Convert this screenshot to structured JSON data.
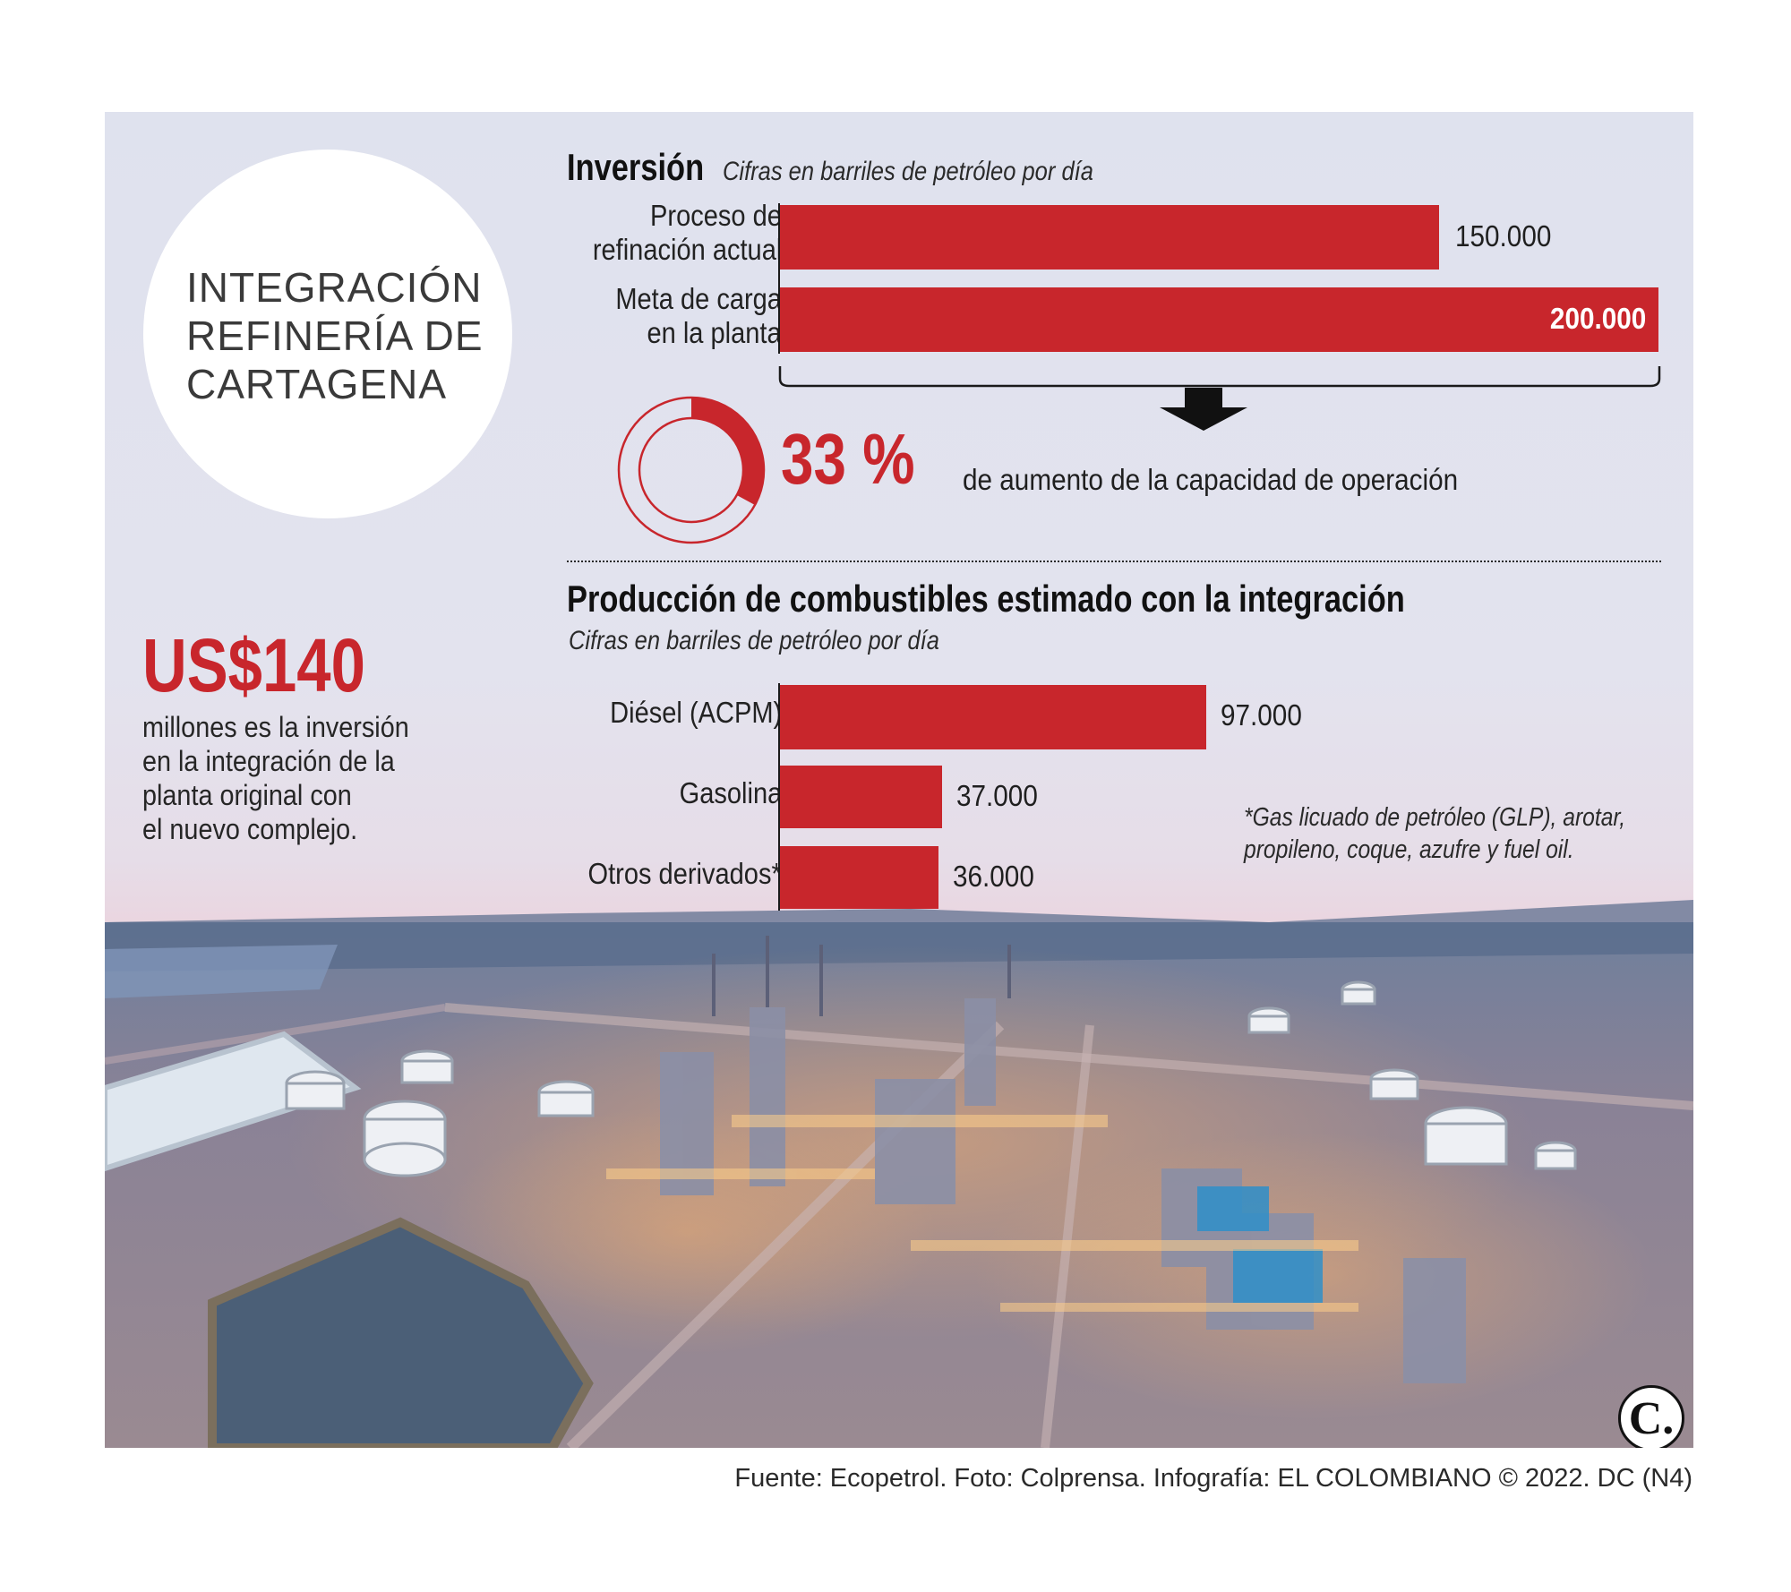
{
  "title": {
    "line1": "INTEGRACIÓN",
    "line2": "REFINERÍA DE",
    "line3": "CARTAGENA"
  },
  "investment_highlight": {
    "amount": "US$140",
    "line1": "millones es la inversión",
    "line2": "en la integración de la",
    "line3": "planta original con",
    "line4": "el nuevo complejo."
  },
  "increase": {
    "percent_label": "33 %",
    "percent_value": 33,
    "description": "de aumento de la capacidad de operación"
  },
  "footnote": {
    "line1": "*Gas licuado de petróleo (GLP), arotar,",
    "line2": "propileno, coque, azufre y fuel oil."
  },
  "credit": "Fuente: Ecopetrol. Foto: Colprensa. Infografía: EL COLOMBIANO © 2022. DC (N4)",
  "logo": {
    "letter": "C."
  },
  "colors": {
    "bar": "#c8262c",
    "accent_red": "#c8262c",
    "text": "#222222"
  },
  "chart_data": [
    {
      "type": "bar",
      "orientation": "horizontal",
      "title": "Inversión",
      "subtitle": "Cifras en barriles de petróleo por día",
      "categories": [
        {
          "line1": "Proceso de",
          "line2": "refinación actual"
        },
        {
          "line1": "Meta de carga",
          "line2": "en la planta"
        }
      ],
      "values": [
        150000,
        200000
      ],
      "value_labels": [
        "150.000",
        "200.000"
      ],
      "xlim": [
        0,
        200000
      ]
    },
    {
      "type": "bar",
      "orientation": "horizontal",
      "title": "Producción de combustibles estimado con la integración",
      "subtitle": "Cifras en barriles de petróleo por día",
      "categories": [
        "Diésel (ACPM)",
        "Gasolina",
        "Otros derivados*"
      ],
      "values": [
        97000,
        37000,
        36000
      ],
      "value_labels": [
        "97.000",
        "37.000",
        "36.000"
      ],
      "xlim": [
        0,
        200000
      ]
    }
  ]
}
